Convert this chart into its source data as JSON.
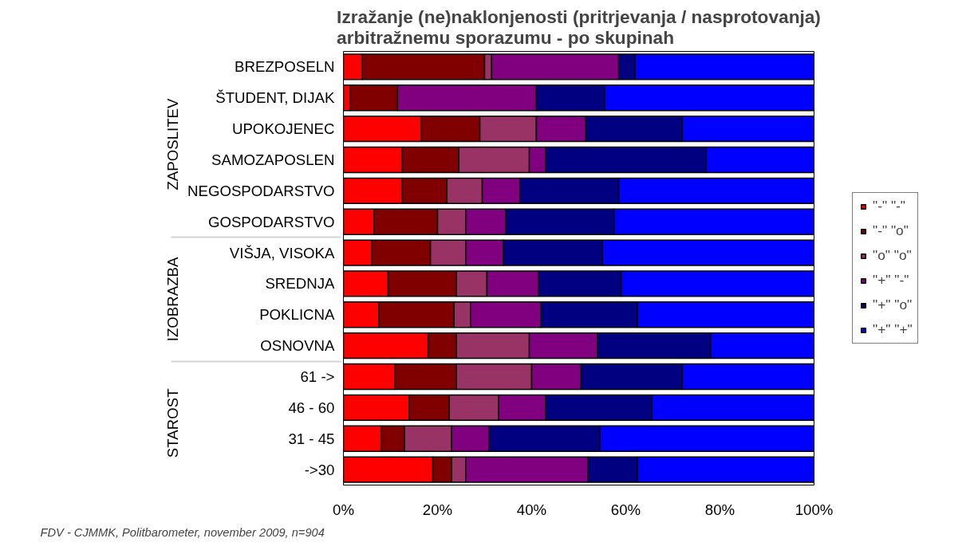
{
  "chart_data": {
    "type": "bar",
    "orientation": "horizontal",
    "stacked": true,
    "title": "Izražanje (ne)naklonjenosti (pritrjevanja / nasprotovanja)\narbitražnemu sporazumu - po skupinah",
    "categories": [
      "BREZPOSELN",
      "ŠTUDENT, DIJAK",
      "UPOKOJENEC",
      "SAMOZAPOSLEN",
      "NEGOSPODARSTVO",
      "GOSPODARSTVO",
      "VIŠJA, VISOKA",
      "SREDNJA",
      "POKLICNA",
      "OSNOVNA",
      "61 ->",
      "46 - 60",
      "31 - 45",
      "->30"
    ],
    "series": [
      {
        "name": "\"-\" \"-\"",
        "color": "#ff0000",
        "values": [
          4,
          1.5,
          16.5,
          12.5,
          12.5,
          6.5,
          6,
          9.5,
          7.5,
          18,
          11,
          14,
          8,
          19
        ]
      },
      {
        "name": "\"-\" \"o\"",
        "color": "#800000",
        "values": [
          26,
          10,
          12.5,
          12,
          9.5,
          13.5,
          12.5,
          14.5,
          16,
          6,
          13,
          8.5,
          5,
          4
        ]
      },
      {
        "name": "\"o\" \"o\"",
        "color": "#993366",
        "values": [
          1.5,
          null,
          12,
          15,
          7.5,
          6,
          7.5,
          6.5,
          3.5,
          15.5,
          16,
          10.5,
          10,
          3
        ]
      },
      {
        "name": "\"+\" \"-\"",
        "color": "#800080",
        "values": [
          27,
          29.5,
          10.5,
          3.5,
          8,
          8.5,
          8,
          11,
          15,
          14.5,
          10.5,
          10,
          8,
          26
        ]
      },
      {
        "name": "\"+\" \"o\"",
        "color": "#000080",
        "values": [
          3.5,
          14.5,
          20.5,
          34,
          21,
          23,
          21,
          17.5,
          20.5,
          24,
          21.5,
          22.5,
          23.5,
          10.5
        ]
      },
      {
        "name": "\"+\" \"+\"",
        "color": "#0000ff",
        "values": [
          38,
          44.5,
          28,
          23,
          41.5,
          42.5,
          45,
          41,
          37.5,
          22,
          28,
          34.5,
          45.5,
          37.5
        ]
      }
    ],
    "xlim": [
      0,
      100
    ],
    "xticks": [
      {
        "value": 0,
        "label": "0%"
      },
      {
        "value": 20,
        "label": "20%"
      },
      {
        "value": 40,
        "label": "40%"
      },
      {
        "value": 60,
        "label": "60%"
      },
      {
        "value": 80,
        "label": "80%"
      },
      {
        "value": 100,
        "label": "100%"
      }
    ],
    "grid": false,
    "legend": "right",
    "annotations": [
      "ZAPOSLITEV",
      "IZOBRAZBA",
      "STAROST",
      "FDV - CJMMK, Politbarometer, november 2009, n=904"
    ]
  }
}
